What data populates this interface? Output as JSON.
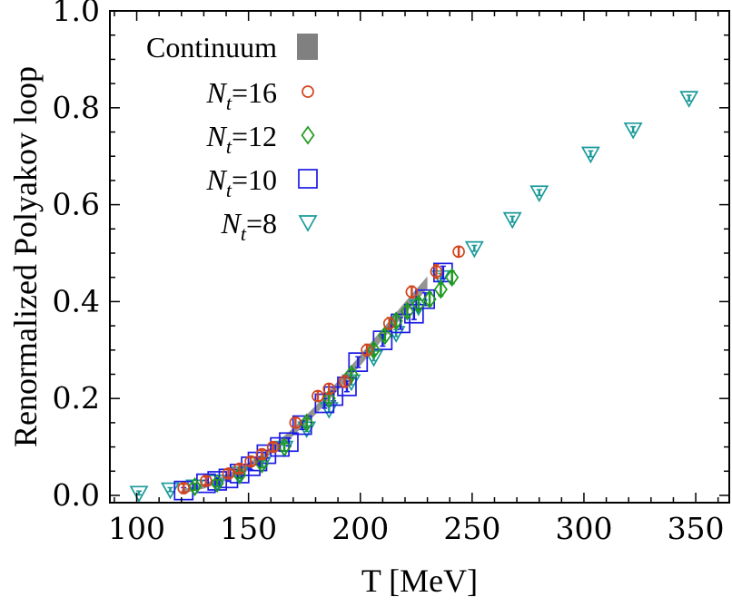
{
  "chart_data": {
    "type": "scatter",
    "xlabel": "T [MeV]",
    "ylabel": "Renormalized Polyakov loop",
    "xlim": [
      88,
      365
    ],
    "ylim": [
      -0.015,
      1.0
    ],
    "xticks": [
      100,
      150,
      200,
      250,
      300,
      350
    ],
    "yticks": [
      0.0,
      0.2,
      0.4,
      0.6,
      0.8,
      1.0
    ],
    "ytick_labels": [
      "0.0",
      "0.2",
      "0.4",
      "0.6",
      "0.8",
      "1.0"
    ],
    "grid": false,
    "legend_position": "top-left",
    "continuum": {
      "name": "Continuum",
      "color": "#808080",
      "x": [
        120,
        130,
        140,
        150,
        160,
        170,
        180,
        190,
        200,
        210,
        220,
        230
      ],
      "lower": [
        0.003,
        0.014,
        0.03,
        0.053,
        0.085,
        0.123,
        0.167,
        0.217,
        0.268,
        0.322,
        0.375,
        0.427
      ],
      "upper": [
        0.012,
        0.024,
        0.042,
        0.066,
        0.099,
        0.139,
        0.185,
        0.236,
        0.29,
        0.344,
        0.399,
        0.452
      ]
    },
    "series": [
      {
        "name_prefix": "N",
        "name_sub": "t",
        "name_suffix": "=16",
        "marker": "circle",
        "color": "#d2451e",
        "x": [
          121,
          131,
          141,
          146,
          151,
          156,
          161,
          171,
          181,
          186,
          193,
          203,
          213,
          223,
          234,
          244
        ],
        "y": [
          0.015,
          0.03,
          0.045,
          0.055,
          0.07,
          0.085,
          0.1,
          0.15,
          0.205,
          0.22,
          0.235,
          0.3,
          0.355,
          0.42,
          0.462,
          0.503
        ],
        "err": [
          0.008,
          0.008,
          0.008,
          0.008,
          0.008,
          0.008,
          0.008,
          0.01,
          0.01,
          0.01,
          0.012,
          0.012,
          0.012,
          0.012,
          0.014,
          0.01
        ]
      },
      {
        "name_prefix": "N",
        "name_sub": "t",
        "name_suffix": "=12",
        "marker": "diamond",
        "color": "#1e9a1e",
        "x": [
          126,
          136,
          146,
          156,
          166,
          176,
          186,
          196,
          206,
          211,
          216,
          221,
          226,
          231,
          236,
          241
        ],
        "y": [
          0.018,
          0.025,
          0.042,
          0.065,
          0.1,
          0.15,
          0.2,
          0.25,
          0.3,
          0.33,
          0.36,
          0.38,
          0.395,
          0.405,
          0.425,
          0.45
        ],
        "err": [
          0.007,
          0.007,
          0.007,
          0.008,
          0.008,
          0.009,
          0.01,
          0.01,
          0.011,
          0.011,
          0.012,
          0.012,
          0.012,
          0.013,
          0.013,
          0.013
        ]
      },
      {
        "name_prefix": "N",
        "name_sub": "t",
        "name_suffix": "=10",
        "marker": "square",
        "color": "#1a1ae6",
        "x": [
          121,
          131,
          136,
          141,
          146,
          151,
          154,
          158,
          164,
          168,
          174,
          184,
          188,
          194,
          199,
          210,
          218,
          224,
          229,
          237
        ],
        "y": [
          0.01,
          0.025,
          0.03,
          0.035,
          0.045,
          0.06,
          0.07,
          0.085,
          0.1,
          0.11,
          0.145,
          0.19,
          0.205,
          0.225,
          0.275,
          0.32,
          0.355,
          0.375,
          0.405,
          0.46
        ],
        "err": [
          0.006,
          0.006,
          0.006,
          0.006,
          0.007,
          0.007,
          0.007,
          0.008,
          0.008,
          0.008,
          0.009,
          0.01,
          0.01,
          0.011,
          0.011,
          0.012,
          0.012,
          0.012,
          0.013,
          0.013
        ]
      },
      {
        "name_prefix": "N",
        "name_sub": "t",
        "name_suffix": "=8",
        "marker": "triangle-down",
        "color": "#1a9a9a",
        "x": [
          101,
          115,
          126,
          136,
          146,
          156,
          166,
          176,
          186,
          196,
          206,
          216,
          226,
          236,
          251,
          268,
          280,
          303,
          322,
          347
        ],
        "y": [
          0.005,
          0.012,
          0.018,
          0.028,
          0.045,
          0.065,
          0.098,
          0.138,
          0.178,
          0.235,
          0.285,
          0.335,
          0.39,
          0.45,
          0.51,
          0.57,
          0.625,
          0.705,
          0.755,
          0.82
        ],
        "err": [
          0.004,
          0.004,
          0.004,
          0.005,
          0.005,
          0.005,
          0.006,
          0.006,
          0.006,
          0.007,
          0.007,
          0.007,
          0.007,
          0.008,
          0.006,
          0.006,
          0.006,
          0.006,
          0.006,
          0.006
        ]
      }
    ]
  }
}
